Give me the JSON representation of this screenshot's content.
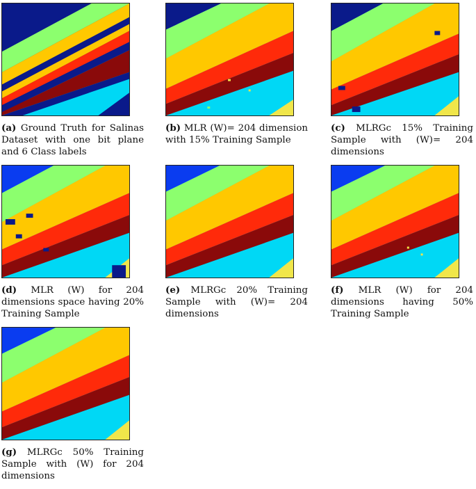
{
  "colors": {
    "navy": "#0a1a8a",
    "blue": "#0a3cf0",
    "green": "#8cff6e",
    "yellow": "#ffc800",
    "red": "#ff2a0a",
    "maroon": "#8a0a0a",
    "cyan": "#00d8f5",
    "light_yellow": "#f0e64a"
  },
  "figures": [
    {
      "label": "(a)",
      "caption": "Ground Truth for Salinas Dataset with one bit plane and 6 Class labels"
    },
    {
      "label": "(b)",
      "caption": "MLR (W)= 204 dimension with 15% Training Sample"
    },
    {
      "label": "(c)",
      "caption": "MLRGc 15% Training Sample with (W)= 204 dimensions"
    },
    {
      "label": "(d)",
      "caption": "MLR (W) for 204 dimensions space having 20% Training Sample"
    },
    {
      "label": "(e)",
      "caption": "MLRGc 20% Training Sample with (W)= 204 dimensions"
    },
    {
      "label": "(f)",
      "caption": "MLR (W) for 204 dimensions having 50% Training Sample"
    },
    {
      "label": "(g)",
      "caption": "MLRGc 50% Training Sample with (W) for 204 dimensions"
    }
  ]
}
